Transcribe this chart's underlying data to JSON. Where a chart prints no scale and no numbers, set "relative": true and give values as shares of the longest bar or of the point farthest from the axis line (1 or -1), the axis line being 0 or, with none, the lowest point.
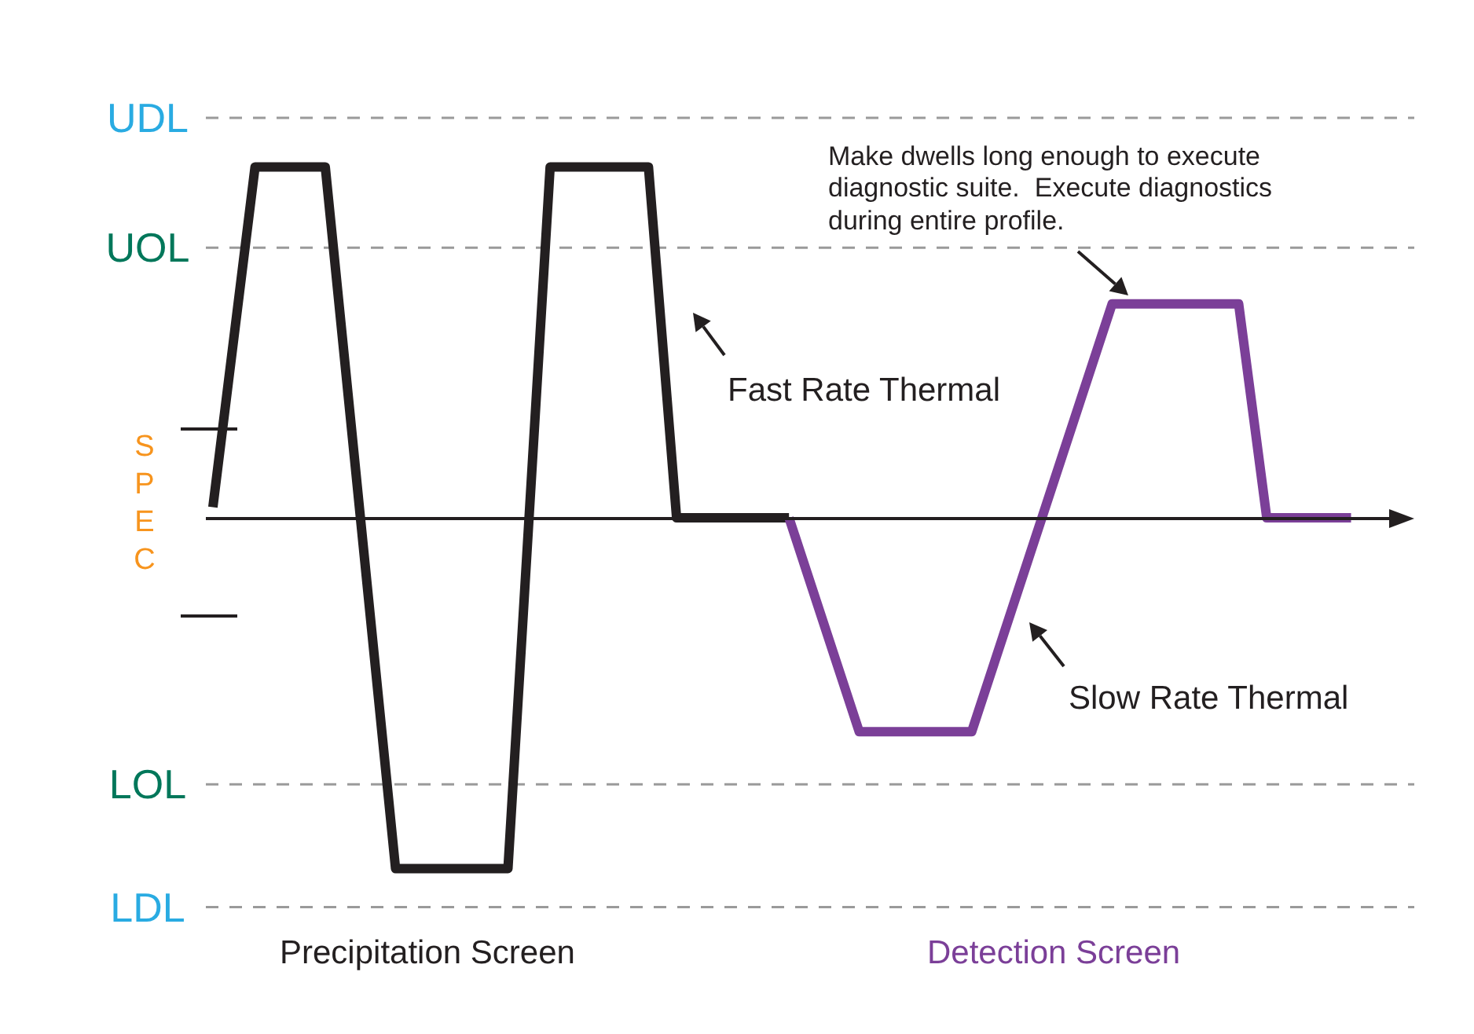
{
  "chart_data": {
    "type": "line",
    "relative": true,
    "categories": [
      null,
      null,
      null,
      null,
      null,
      null,
      null,
      null,
      null,
      null,
      null,
      null,
      null,
      null,
      null,
      null,
      null,
      null,
      null,
      null,
      null,
      null,
      null,
      null,
      null,
      null,
      null,
      null,
      null,
      null,
      null,
      null,
      null,
      null,
      null,
      null,
      null,
      null,
      null,
      null,
      null,
      null,
      null,
      null,
      null,
      null,
      null,
      null,
      null,
      null,
      null,
      null,
      null,
      null,
      null,
      null,
      null,
      null,
      null,
      null,
      null,
      null,
      null,
      null,
      null,
      null,
      null,
      null,
      null,
      null,
      null,
      null,
      null,
      null,
      null,
      null,
      null,
      null,
      null,
      null,
      null,
      null,
      null,
      null,
      null,
      null
    ],
    "series": [
      {
        "color": "#231f20",
        "values": [
          0.03,
          null,
          null,
          1,
          null,
          null,
          null,
          null,
          1,
          null,
          null,
          null,
          null,
          -1,
          null,
          null,
          null,
          null,
          null,
          null,
          null,
          -1,
          null,
          null,
          1,
          null,
          null,
          null,
          null,
          null,
          null,
          1,
          null,
          0,
          null,
          null,
          null,
          null,
          null,
          null,
          null,
          0,
          null,
          null,
          null,
          null,
          null,
          null,
          null,
          null,
          null,
          null,
          null,
          null,
          null,
          null,
          null,
          null,
          null,
          null,
          null,
          null,
          null,
          null,
          null,
          null,
          null,
          null,
          null,
          null,
          null,
          null,
          null,
          null,
          null,
          null,
          null,
          null,
          null,
          null,
          null,
          null,
          null,
          null,
          null,
          null
        ]
      },
      {
        "color": "#7b3f98",
        "values": [
          null,
          null,
          null,
          null,
          null,
          null,
          null,
          null,
          null,
          null,
          null,
          null,
          null,
          null,
          null,
          null,
          null,
          null,
          null,
          null,
          null,
          null,
          null,
          null,
          null,
          null,
          null,
          null,
          null,
          null,
          null,
          null,
          null,
          null,
          null,
          null,
          null,
          null,
          null,
          null,
          null,
          0,
          null,
          null,
          null,
          null,
          -0.61,
          null,
          null,
          null,
          null,
          null,
          null,
          null,
          -0.61,
          null,
          null,
          null,
          null,
          null,
          null,
          null,
          null,
          null,
          0.61,
          null,
          null,
          null,
          null,
          null,
          null,
          null,
          null,
          0.61,
          null,
          0,
          null,
          null,
          null,
          null,
          null,
          0,
          null,
          null,
          null,
          null
        ]
      }
    ],
    "ref_lines": [
      {
        "axis": "y",
        "value": 1.14,
        "label": "UDL",
        "color": "#9a9a9a",
        "line_style": "dashed"
      },
      {
        "axis": "y",
        "value": 0.77,
        "label": "UOL",
        "color": "#9a9a9a",
        "line_style": "dashed"
      },
      {
        "axis": "y",
        "value": -0.76,
        "label": "LOL",
        "color": "#9a9a9a",
        "line_style": "dashed"
      },
      {
        "axis": "y",
        "value": -1.11,
        "label": "LDL",
        "color": "#9a9a9a",
        "line_style": "dashed"
      }
    ],
    "annotations": [
      "Make dwells long enough to execute diagnostic suite.  Execute diagnostics during entire profile.",
      "Precipitation Screen",
      "Detection Screen",
      "Fast Rate Thermal",
      "Slow Rate Thermal",
      "SPEC"
    ]
  }
}
